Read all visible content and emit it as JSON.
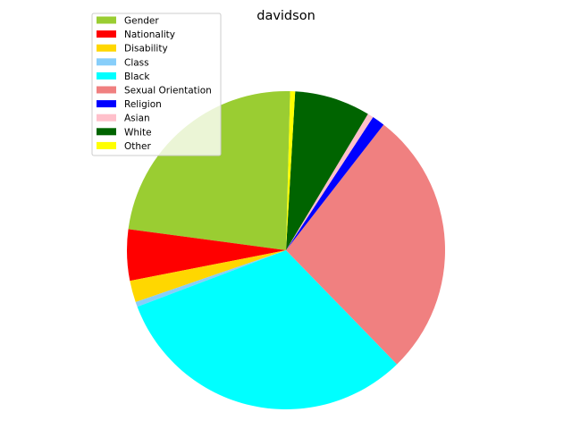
{
  "chart_data": {
    "type": "pie",
    "title": "davidson",
    "legend_position": "upper-left",
    "start_angle_deg": 88.5,
    "direction": "counterclockwise",
    "slices": [
      {
        "label": "Gender",
        "value": 23.3,
        "color": "#9ACD32"
      },
      {
        "label": "Nationality",
        "value": 5.2,
        "color": "#FF0000"
      },
      {
        "label": "Disability",
        "value": 2.2,
        "color": "#FFD700"
      },
      {
        "label": "Class",
        "value": 0.5,
        "color": "#87CEFA"
      },
      {
        "label": "Black",
        "value": 31.5,
        "color": "#00FFFF"
      },
      {
        "label": "Sexual Orientation",
        "value": 27.2,
        "color": "#F08080"
      },
      {
        "label": "Religion",
        "value": 1.3,
        "color": "#0000FF"
      },
      {
        "label": "Asian",
        "value": 0.6,
        "color": "#FFC0CB"
      },
      {
        "label": "White",
        "value": 7.7,
        "color": "#006400"
      },
      {
        "label": "Other",
        "value": 0.5,
        "color": "#FFFF00"
      }
    ]
  }
}
